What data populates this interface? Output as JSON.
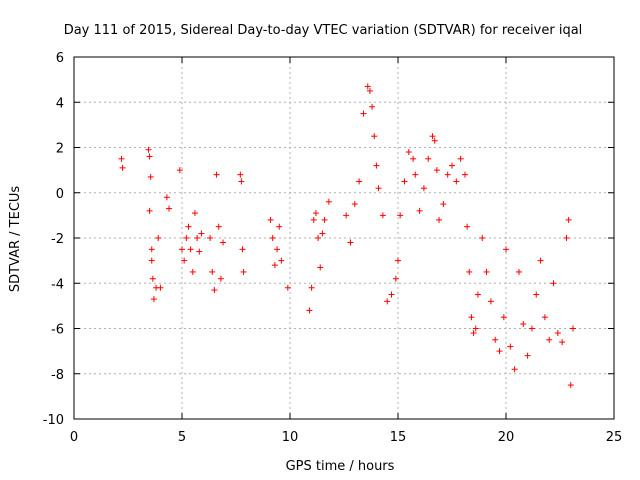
{
  "chart_data": {
    "type": "scatter",
    "title": "Day 111 of 2015, Sidereal Day-to-day VTEC variation (SDTVAR) for receiver iqal",
    "xlabel": "GPS time / hours",
    "ylabel": "SDTVAR / TECUs",
    "xlim": [
      0,
      25
    ],
    "ylim": [
      -10,
      6
    ],
    "xticks": [
      "0",
      "5",
      "10",
      "15",
      "20",
      "25"
    ],
    "yticks": [
      "6",
      "4",
      "2",
      "0",
      "-2",
      "-4",
      "-6",
      "-8",
      "-10"
    ],
    "grid": true,
    "marker": "+",
    "color": "#ff0000",
    "series": [
      {
        "name": "SDTVAR",
        "x": [
          2.2,
          2.25,
          3.45,
          3.5,
          3.55,
          3.5,
          3.6,
          3.6,
          3.65,
          3.7,
          3.8,
          3.9,
          4.0,
          4.3,
          4.4,
          4.9,
          5.0,
          5.1,
          5.2,
          5.3,
          5.4,
          5.5,
          5.6,
          5.7,
          5.8,
          5.9,
          6.3,
          6.4,
          6.5,
          6.6,
          6.7,
          6.8,
          6.9,
          7.7,
          7.75,
          7.8,
          7.85,
          9.1,
          9.2,
          9.3,
          9.4,
          9.5,
          9.6,
          9.9,
          10.9,
          11.0,
          11.1,
          11.2,
          11.3,
          11.4,
          11.5,
          11.6,
          11.8,
          12.6,
          12.8,
          13.0,
          13.2,
          13.4,
          13.6,
          13.7,
          13.8,
          13.9,
          14.0,
          14.1,
          14.3,
          14.5,
          14.7,
          14.9,
          15.0,
          15.1,
          15.3,
          15.5,
          15.7,
          15.8,
          16.0,
          16.2,
          16.4,
          16.6,
          16.7,
          16.8,
          16.9,
          17.1,
          17.3,
          17.5,
          17.7,
          17.9,
          18.1,
          18.2,
          18.3,
          18.4,
          18.5,
          18.6,
          18.7,
          18.9,
          19.1,
          19.3,
          19.5,
          19.7,
          19.9,
          20.0,
          20.2,
          20.4,
          20.6,
          20.8,
          21.0,
          21.2,
          21.4,
          21.6,
          21.8,
          22.0,
          22.2,
          22.4,
          22.6,
          22.8,
          22.9,
          23.0,
          23.1
        ],
        "y": [
          1.5,
          1.1,
          1.9,
          1.6,
          0.7,
          -0.8,
          -2.5,
          -3.0,
          -3.8,
          -4.7,
          -4.2,
          -2.0,
          -4.2,
          -0.2,
          -0.7,
          1.0,
          -2.5,
          -3.0,
          -2.0,
          -1.5,
          -2.5,
          -3.5,
          -0.9,
          -2.0,
          -2.6,
          -1.8,
          -2.0,
          -3.5,
          -4.3,
          0.8,
          -1.5,
          -3.8,
          -2.2,
          0.8,
          0.5,
          -2.5,
          -3.5,
          -1.2,
          -2.0,
          -3.2,
          -2.5,
          -1.5,
          -3.0,
          -4.2,
          -5.2,
          -4.2,
          -1.2,
          -0.9,
          -2.0,
          -3.3,
          -1.8,
          -1.2,
          -0.4,
          -1.0,
          -2.2,
          -0.5,
          0.5,
          3.5,
          4.7,
          4.5,
          3.8,
          2.5,
          1.2,
          0.2,
          -1.0,
          -4.8,
          -4.5,
          -3.8,
          -3.0,
          -1.0,
          0.5,
          1.8,
          1.5,
          0.8,
          -0.8,
          0.2,
          1.5,
          2.5,
          2.3,
          1.0,
          -1.2,
          -0.5,
          0.8,
          1.2,
          0.5,
          1.5,
          0.8,
          -1.5,
          -3.5,
          -5.5,
          -6.2,
          -6.0,
          -4.5,
          -2.0,
          -3.5,
          -4.8,
          -6.5,
          -7.0,
          -5.5,
          -2.5,
          -6.8,
          -7.8,
          -3.5,
          -5.8,
          -7.2,
          -6.0,
          -4.5,
          -3.0,
          -5.5,
          -6.5,
          -4.0,
          -6.2,
          -6.6,
          -2.0,
          -1.2,
          -8.5,
          -6.0
        ]
      }
    ]
  }
}
